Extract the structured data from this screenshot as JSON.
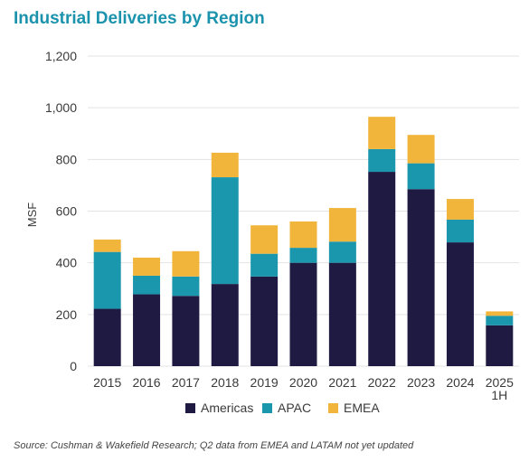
{
  "colors": {
    "title": "#1b93ad",
    "americas": "#1e1a42",
    "apac": "#1a96ad",
    "emea": "#f2b53b",
    "grid": "#e3e3e3"
  },
  "chart_data": {
    "type": "bar",
    "stacked": true,
    "title": "Industrial Deliveries by Region",
    "xlabel": "",
    "ylabel": "MSF",
    "ylim": [
      0,
      1200
    ],
    "yticks": [
      "0",
      "200",
      "400",
      "600",
      "800",
      "1,000",
      "1,200"
    ],
    "categories": [
      [
        "2015"
      ],
      [
        "2016"
      ],
      [
        "2017"
      ],
      [
        "2018"
      ],
      [
        "2019"
      ],
      [
        "2020"
      ],
      [
        "2021"
      ],
      [
        "2022"
      ],
      [
        "2023"
      ],
      [
        "2024"
      ],
      [
        "2025",
        "1H"
      ]
    ],
    "series": [
      {
        "name": "Americas",
        "values": [
          222,
          278,
          272,
          318,
          347,
          400,
          400,
          752,
          685,
          479,
          158
        ]
      },
      {
        "name": "APAC",
        "values": [
          220,
          72,
          75,
          413,
          88,
          58,
          82,
          88,
          100,
          88,
          37
        ]
      },
      {
        "name": "EMEA",
        "values": [
          48,
          70,
          98,
          95,
          110,
          102,
          130,
          125,
          110,
          80,
          17
        ]
      }
    ],
    "grid": true,
    "legend": "bottom",
    "source": "Source: Cushman & Wakefield Research; Q2 data from EMEA and LATAM not yet updated"
  }
}
